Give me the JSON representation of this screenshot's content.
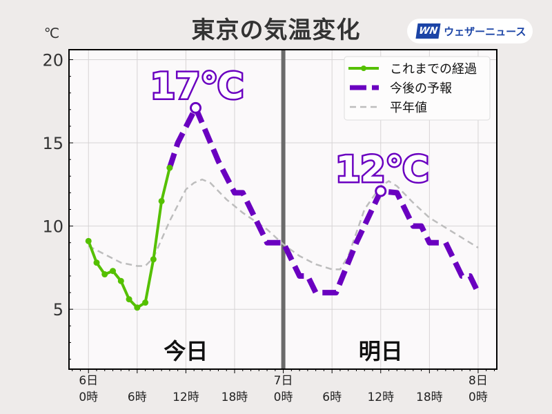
{
  "chart_data": {
    "type": "line",
    "title": "東京の気温変化",
    "ylabel": "℃",
    "ylim": [
      1.4,
      20.6
    ],
    "xlim": [
      -2.4,
      50.3
    ],
    "yticks": [
      5,
      10,
      15,
      20
    ],
    "xticks": [
      {
        "h": 0,
        "l1": "6日",
        "l2": "0時"
      },
      {
        "h": 6,
        "l1": "",
        "l2": "6時"
      },
      {
        "h": 12,
        "l1": "",
        "l2": "12時"
      },
      {
        "h": 18,
        "l1": "",
        "l2": "18時"
      },
      {
        "h": 24,
        "l1": "7日",
        "l2": "0時"
      },
      {
        "h": 30,
        "l1": "",
        "l2": "6時"
      },
      {
        "h": 36,
        "l1": "",
        "l2": "12時"
      },
      {
        "h": 42,
        "l1": "",
        "l2": "18時"
      },
      {
        "h": 48,
        "l1": "8日",
        "l2": "0時"
      }
    ],
    "grid": true,
    "legend_position": "top-right",
    "series": [
      {
        "name": "これまでの経過",
        "color": "#55c000",
        "style": "solid-markers",
        "points": [
          [
            0,
            9.1
          ],
          [
            1,
            7.8
          ],
          [
            2,
            7.1
          ],
          [
            3,
            7.3
          ],
          [
            4,
            6.7
          ],
          [
            5,
            5.6
          ],
          [
            6,
            5.1
          ],
          [
            7,
            5.4
          ],
          [
            8,
            8.0
          ],
          [
            9,
            11.5
          ],
          [
            10,
            13.5
          ]
        ]
      },
      {
        "name": "今後の予報",
        "color": "#6a00c0",
        "style": "dashed-thick",
        "points": [
          [
            10,
            13.5
          ],
          [
            11,
            15
          ],
          [
            13.2,
            17.1
          ],
          [
            14,
            16.2
          ],
          [
            16,
            13.9
          ],
          [
            18,
            12
          ],
          [
            19,
            12
          ],
          [
            22,
            9
          ],
          [
            24,
            9
          ],
          [
            26,
            7
          ],
          [
            27,
            7
          ],
          [
            28,
            6
          ],
          [
            30.5,
            6
          ],
          [
            33,
            9
          ],
          [
            36,
            12.1
          ],
          [
            38,
            12
          ],
          [
            40,
            10
          ],
          [
            41,
            10
          ],
          [
            42,
            9
          ],
          [
            44,
            9
          ],
          [
            46,
            7
          ],
          [
            47,
            7
          ],
          [
            48,
            6
          ]
        ]
      },
      {
        "name": "平年値",
        "color": "#bdbdbd",
        "style": "dashed-thin",
        "points": [
          [
            0,
            8.8
          ],
          [
            2,
            8.3
          ],
          [
            4,
            7.8
          ],
          [
            6,
            7.6
          ],
          [
            7,
            7.6
          ],
          [
            8,
            8.1
          ],
          [
            10,
            10.3
          ],
          [
            12,
            12.2
          ],
          [
            13,
            12.6
          ],
          [
            14,
            12.8
          ],
          [
            15,
            12.6
          ],
          [
            17,
            11.6
          ],
          [
            19,
            10.8
          ],
          [
            22,
            9.8
          ],
          [
            24,
            8.9
          ],
          [
            26,
            8.2
          ],
          [
            28,
            7.7
          ],
          [
            30,
            7.4
          ],
          [
            31,
            7.4
          ],
          [
            32,
            8.2
          ],
          [
            34,
            11.0
          ],
          [
            36,
            12.4
          ],
          [
            37,
            12.7
          ],
          [
            38,
            12.4
          ],
          [
            40,
            11.4
          ],
          [
            42,
            10.5
          ],
          [
            44,
            9.9
          ],
          [
            46,
            9.3
          ],
          [
            48,
            8.7
          ]
        ]
      }
    ],
    "annotations": [
      {
        "text": "17℃",
        "h": 13.2,
        "v": 17.1
      },
      {
        "text": "12℃",
        "h": 36,
        "v": 12.1
      }
    ],
    "day_labels": [
      {
        "text": "今日",
        "h": 12
      },
      {
        "text": "明日",
        "h": 36
      }
    ],
    "divider_h": 24
  },
  "logo": {
    "mark": "WN",
    "text": "ウェザーニュース"
  }
}
